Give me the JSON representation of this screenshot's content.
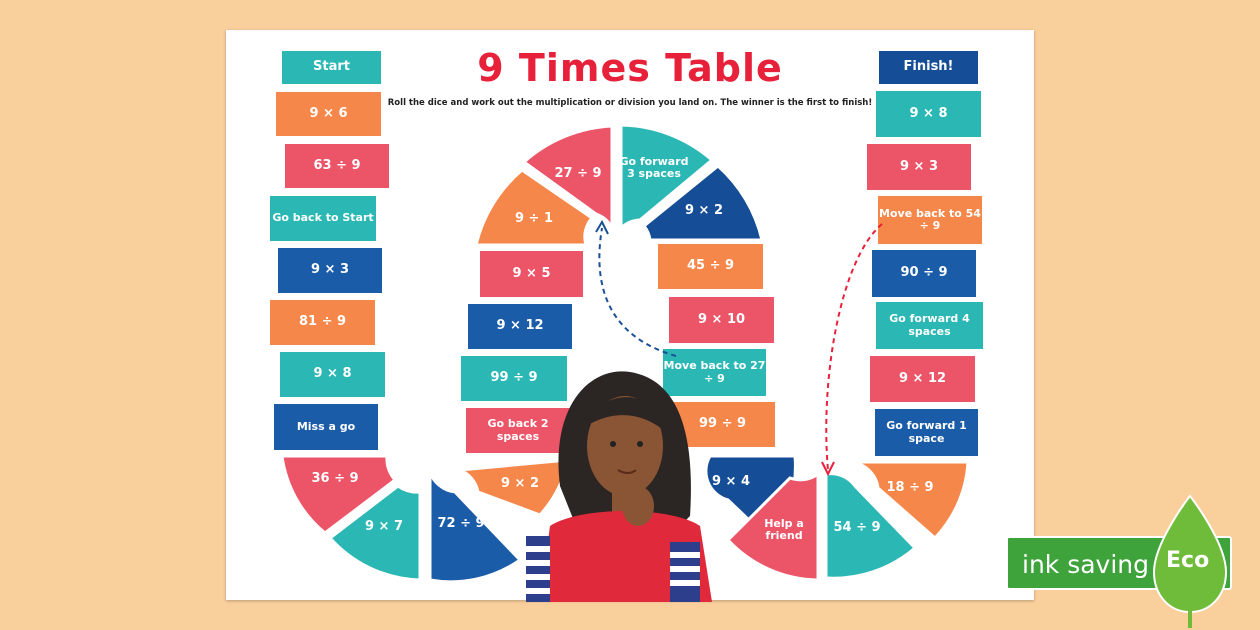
{
  "title": "9 Times Table",
  "subtitle": "Roll the dice and work out the multiplication or division you land on. The winner is the first to finish!",
  "tiles": {
    "start": "Start",
    "l1": "9 × 6",
    "l2": "63 ÷ 9",
    "l3": "Go back to Start",
    "l4": "9 × 3",
    "l5": "81 ÷ 9",
    "l6": "9 × 8",
    "l7": "Miss a go",
    "lw1": "36 ÷ 9",
    "lw2": "9 × 7",
    "lw3": "72 ÷ 9",
    "lw4": "9 × 2",
    "m1": "Go back 2 spaces",
    "m2": "99 ÷ 9",
    "m3": "9 × 12",
    "m4": "9 × 5",
    "tw1": "9 ÷ 1",
    "tw2": "27 ÷ 9",
    "tw3": "Go forward 3 spaces",
    "tw4": "9 × 2",
    "r1": "45 ÷ 9",
    "r2": "9 × 10",
    "r3": "Move back to 27 ÷ 9",
    "r4": "99 ÷ 9",
    "bw1": "9 × 4",
    "bw2": "Help a friend",
    "bw3": "54 ÷ 9",
    "bw4": "18 ÷ 9",
    "f1": "Go forward 1 space",
    "f2": "9 × 12",
    "f3": "Go forward 4 spaces",
    "f4": "90 ÷ 9",
    "f5": "Move back to 54 ÷ 9",
    "f6": "9 × 3",
    "f7": "9 × 8",
    "finish": "Finish!"
  },
  "badge": {
    "label": "ink saving",
    "word": "Eco"
  },
  "colors": {
    "teal": "#2bb8b5",
    "orange": "#f5874a",
    "red": "#ec5468",
    "blue": "#1b5ca8",
    "title": "#e8213a",
    "eco": "#3fa33c"
  }
}
